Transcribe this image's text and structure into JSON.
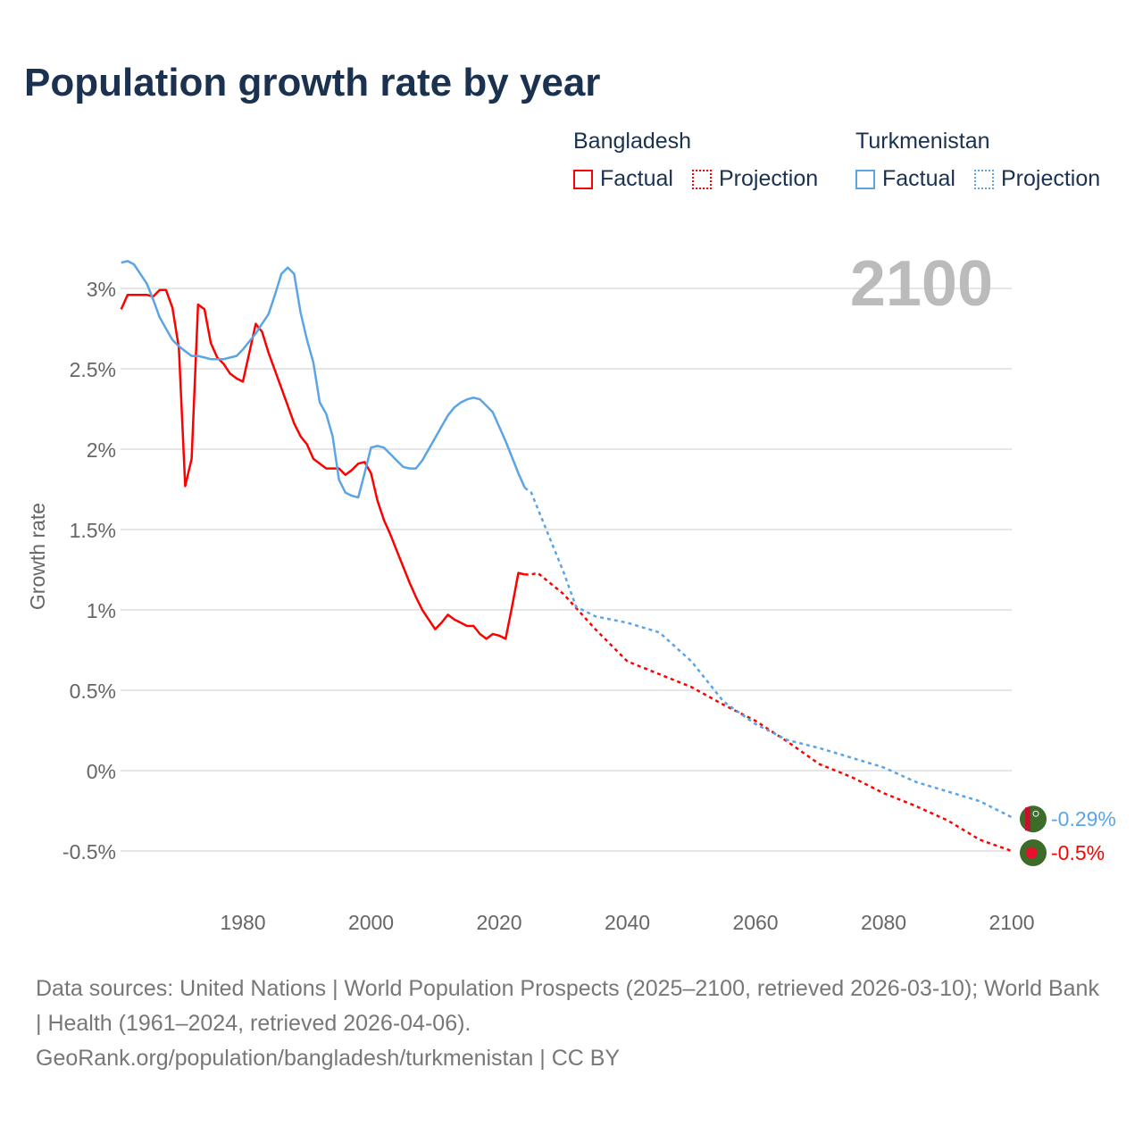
{
  "title": "Population growth rate by year",
  "legend": {
    "groups": [
      {
        "name": "Bangladesh",
        "factual": "Factual",
        "projection": "Projection",
        "color": "#ff0000"
      },
      {
        "name": "Turkmenistan",
        "factual": "Factual",
        "projection": "Projection",
        "color": "#5ba4e6"
      }
    ]
  },
  "year_label": "2100",
  "sources": {
    "line1": "Data sources: United Nations | World Population Prospects (2025–2100, retrieved 2026-03-10); World Bank | Health (1961–2024, retrieved 2026-04-06).",
    "line2": "GeoRank.org/population/bangladesh/turkmenistan | CC BY"
  },
  "chart_data": {
    "type": "line",
    "title": "Population growth rate by year",
    "xlabel": "",
    "ylabel": "Growth rate",
    "xlim": [
      1961,
      2100
    ],
    "ylim": [
      -0.7,
      3.3
    ],
    "xticks": [
      1980,
      2000,
      2020,
      2040,
      2060,
      2080,
      2100
    ],
    "yticks": [
      {
        "v": 3,
        "label": "3%"
      },
      {
        "v": 2.5,
        "label": "2.5%"
      },
      {
        "v": 2,
        "label": "2%"
      },
      {
        "v": 1.5,
        "label": "1.5%"
      },
      {
        "v": 1,
        "label": "1%"
      },
      {
        "v": 0.5,
        "label": "0.5%"
      },
      {
        "v": 0,
        "label": "0%"
      },
      {
        "v": -0.5,
        "label": "-0.5%"
      }
    ],
    "grid": true,
    "legend_position": "top-right",
    "series": [
      {
        "name": "Bangladesh",
        "color": "#ff0000",
        "end_label": "-0.5%",
        "factual": {
          "x_start": 1961,
          "values": [
            2.87,
            2.96,
            2.96,
            2.96,
            2.96,
            2.95,
            2.99,
            2.99,
            2.88,
            2.63,
            1.77,
            1.94,
            2.9,
            2.87,
            2.66,
            2.57,
            2.53,
            2.47,
            2.44,
            2.42,
            2.6,
            2.78,
            2.73,
            2.6,
            2.49,
            2.38,
            2.27,
            2.16,
            2.08,
            2.03,
            1.94,
            1.91,
            1.88,
            1.88,
            1.88,
            1.84,
            1.87,
            1.91,
            1.92,
            1.85,
            1.68,
            1.56,
            1.47,
            1.37,
            1.27,
            1.17,
            1.08,
            1.0,
            0.94,
            0.88,
            0.92,
            0.97,
            0.94,
            0.92,
            0.9,
            0.9,
            0.85,
            0.82,
            0.85,
            0.84,
            0.82,
            1.02,
            1.23,
            1.22
          ]
        },
        "projection": {
          "x": [
            2024,
            2025,
            2026,
            2030,
            2035,
            2040,
            2045,
            2050,
            2055,
            2060,
            2065,
            2070,
            2075,
            2080,
            2085,
            2090,
            2095,
            2100
          ],
          "values": [
            1.22,
            1.22,
            1.23,
            1.1,
            0.88,
            0.68,
            0.6,
            0.52,
            0.41,
            0.31,
            0.18,
            0.04,
            -0.04,
            -0.14,
            -0.22,
            -0.31,
            -0.43,
            -0.5
          ]
        }
      },
      {
        "name": "Turkmenistan",
        "color": "#5ba4e6",
        "end_label": "-0.29%",
        "factual": {
          "x_start": 1961,
          "values": [
            3.16,
            3.17,
            3.15,
            3.09,
            3.03,
            2.93,
            2.82,
            2.75,
            2.68,
            2.64,
            2.61,
            2.58,
            2.58,
            2.57,
            2.56,
            2.56,
            2.56,
            2.57,
            2.58,
            2.62,
            2.67,
            2.72,
            2.78,
            2.84,
            2.96,
            3.09,
            3.13,
            3.09,
            2.85,
            2.68,
            2.54,
            2.29,
            2.22,
            2.08,
            1.81,
            1.73,
            1.71,
            1.7,
            1.85,
            2.01,
            2.02,
            2.01,
            1.97,
            1.93,
            1.89,
            1.88,
            1.88,
            1.93,
            2.0,
            2.07,
            2.14,
            2.21,
            2.26,
            2.29,
            2.31,
            2.32,
            2.31,
            2.27,
            2.23,
            2.14,
            2.05,
            1.95,
            1.85,
            1.76
          ]
        },
        "projection": {
          "x": [
            2024,
            2025,
            2030,
            2032,
            2035,
            2040,
            2045,
            2050,
            2055,
            2060,
            2065,
            2070,
            2075,
            2080,
            2085,
            2090,
            2095,
            2100
          ],
          "values": [
            1.76,
            1.73,
            1.24,
            1.02,
            0.96,
            0.92,
            0.86,
            0.68,
            0.43,
            0.29,
            0.19,
            0.14,
            0.08,
            0.02,
            -0.07,
            -0.13,
            -0.19,
            -0.29
          ]
        }
      }
    ]
  }
}
